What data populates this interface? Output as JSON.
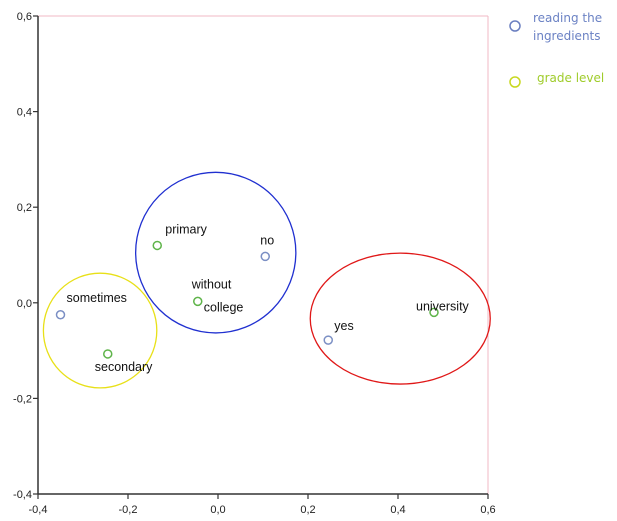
{
  "chart_data": {
    "type": "scatter",
    "title": "",
    "xlabel": "",
    "ylabel": "",
    "xlim": [
      -0.4,
      0.6
    ],
    "ylim": [
      -0.4,
      0.6
    ],
    "x_ticks": [
      -0.4,
      -0.2,
      0.0,
      0.2,
      0.4,
      0.6
    ],
    "y_ticks": [
      -0.4,
      -0.2,
      0.0,
      0.2,
      0.4,
      0.6
    ],
    "x_tick_labels": [
      "-0,4",
      "-0,2",
      "0,0",
      "0,2",
      "0,4",
      "0,6"
    ],
    "y_tick_labels": [
      "-0,4",
      "-0,2",
      "0,0",
      "0,2",
      "0,4",
      "0,6"
    ],
    "grid": false,
    "legend_position": "outside-right",
    "series": [
      {
        "name": "reading the ingredients",
        "color": "#7b8fc4",
        "points": [
          {
            "label": "sometimes",
            "x": -0.35,
            "y": -0.025
          },
          {
            "label": "no",
            "x": 0.105,
            "y": 0.097
          },
          {
            "label": "yes",
            "x": 0.245,
            "y": -0.078
          }
        ]
      },
      {
        "name": "grade level",
        "color": "#5fb44a",
        "points": [
          {
            "label": "primary",
            "x": -0.135,
            "y": 0.12
          },
          {
            "label": "without college",
            "x": -0.045,
            "y": 0.003
          },
          {
            "label": "secondary",
            "x": -0.245,
            "y": -0.107
          },
          {
            "label": "university",
            "x": 0.48,
            "y": -0.02
          }
        ]
      }
    ],
    "annotations": [
      {
        "shape": "ellipse",
        "color": "#2030d0",
        "cx": -0.005,
        "cy": 0.105,
        "rx": 0.178,
        "ry": 0.168
      },
      {
        "shape": "ellipse",
        "color": "#e01818",
        "cx": 0.405,
        "cy": -0.033,
        "rx": 0.2,
        "ry": 0.137
      },
      {
        "shape": "ellipse",
        "color": "#e8e018",
        "cx": -0.262,
        "cy": -0.058,
        "rx": 0.126,
        "ry": 0.12
      }
    ],
    "legend_label_colors": [
      "#6b82c4",
      "#9fcc2a"
    ]
  }
}
